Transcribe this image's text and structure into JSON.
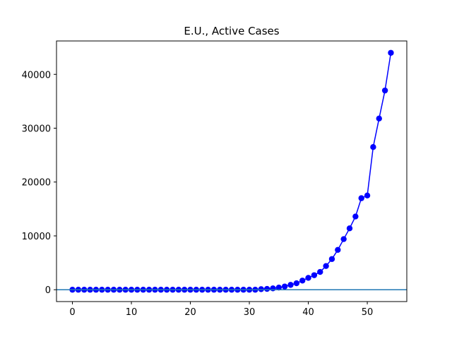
{
  "chart_data": {
    "type": "line",
    "title": "E.U., Active Cases",
    "xlabel": "",
    "ylabel": "",
    "xlim": [
      -2.7,
      56.7
    ],
    "ylim": [
      -2200,
      46200
    ],
    "x_ticks": [
      0,
      10,
      20,
      30,
      40,
      50
    ],
    "y_ticks": [
      0,
      10000,
      20000,
      30000,
      40000
    ],
    "grid": false,
    "series": [
      {
        "color": "#0000ff",
        "marker": "circle",
        "x": [
          0,
          1,
          2,
          3,
          4,
          5,
          6,
          7,
          8,
          9,
          10,
          11,
          12,
          13,
          14,
          15,
          16,
          17,
          18,
          19,
          20,
          21,
          22,
          23,
          24,
          25,
          26,
          27,
          28,
          29,
          30,
          31,
          32,
          33,
          34,
          35,
          36,
          37,
          38,
          39,
          40,
          41,
          42,
          43,
          44,
          45,
          46,
          47,
          48,
          49,
          50,
          51,
          52,
          53,
          54
        ],
        "values": [
          0,
          0,
          0,
          0,
          0,
          0,
          0,
          0,
          0,
          0,
          0,
          0,
          0,
          0,
          0,
          0,
          0,
          0,
          0,
          0,
          0,
          0,
          0,
          0,
          0,
          0,
          0,
          0,
          0,
          0,
          0,
          0,
          100,
          150,
          250,
          400,
          600,
          900,
          1200,
          1700,
          2200,
          2700,
          3300,
          4400,
          5700,
          7400,
          9400,
          11400,
          13600,
          17000,
          17500,
          26500,
          31800,
          37000,
          44000
        ]
      }
    ],
    "reference_line": {
      "y": 0,
      "color": "#1f77b4"
    }
  }
}
